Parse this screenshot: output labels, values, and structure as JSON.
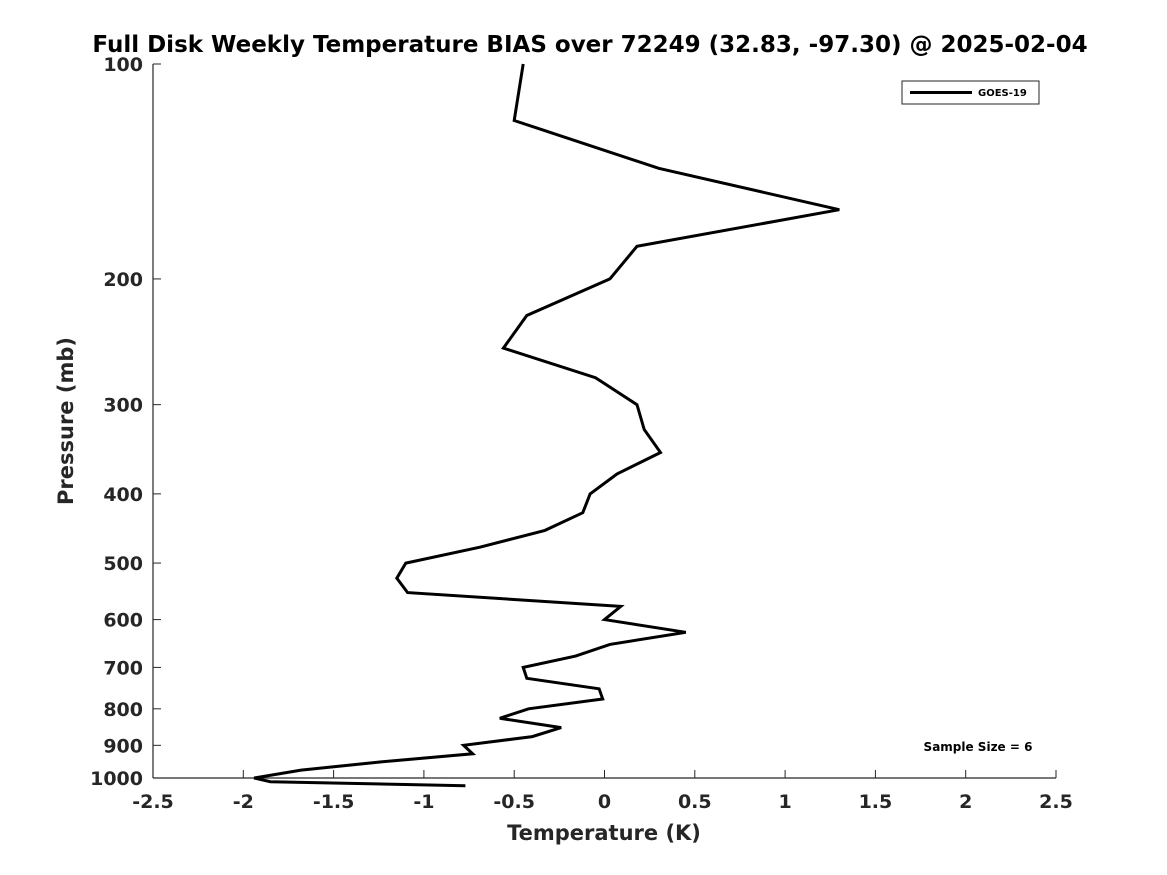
{
  "chart_data": {
    "type": "line",
    "title": "Full Disk Weekly Temperature BIAS over 72249 (32.83, -97.30) @ 2025-02-04",
    "xlabel": "Temperature (K)",
    "ylabel": "Pressure (mb)",
    "xlim": [
      -2.5,
      2.5
    ],
    "ylim": [
      100,
      1000
    ],
    "y_scale": "log",
    "y_reversed": true,
    "grid": false,
    "legend_position": "top-right",
    "x_ticks": [
      -2.5,
      -2,
      -1.5,
      -1,
      -0.5,
      0,
      0.5,
      1,
      1.5,
      2,
      2.5
    ],
    "x_tick_labels": [
      "-2.5",
      "-2",
      "-1.5",
      "-1",
      "-0.5",
      "0",
      "0.5",
      "1",
      "1.5",
      "2",
      "2.5"
    ],
    "y_ticks": [
      100,
      200,
      300,
      400,
      500,
      600,
      700,
      800,
      900,
      1000
    ],
    "y_tick_labels": [
      "100",
      "200",
      "300",
      "400",
      "500",
      "600",
      "700",
      "800",
      "900",
      "1000"
    ],
    "annotation": "Sample Size = 6",
    "series": [
      {
        "name": "GOES-19",
        "color": "#000000",
        "points": [
          {
            "x": -0.45,
            "p": 100
          },
          {
            "x": -0.5,
            "p": 120
          },
          {
            "x": 0.3,
            "p": 140
          },
          {
            "x": 1.3,
            "p": 160
          },
          {
            "x": 0.18,
            "p": 180
          },
          {
            "x": 0.03,
            "p": 200
          },
          {
            "x": -0.43,
            "p": 225
          },
          {
            "x": -0.56,
            "p": 250
          },
          {
            "x": -0.05,
            "p": 275
          },
          {
            "x": 0.18,
            "p": 300
          },
          {
            "x": 0.22,
            "p": 325
          },
          {
            "x": 0.31,
            "p": 350
          },
          {
            "x": 0.07,
            "p": 375
          },
          {
            "x": -0.08,
            "p": 400
          },
          {
            "x": -0.12,
            "p": 425
          },
          {
            "x": -0.33,
            "p": 450
          },
          {
            "x": -0.69,
            "p": 475
          },
          {
            "x": -1.1,
            "p": 500
          },
          {
            "x": -1.15,
            "p": 525
          },
          {
            "x": -1.09,
            "p": 550
          },
          {
            "x": 0.09,
            "p": 575
          },
          {
            "x": 0.0,
            "p": 600
          },
          {
            "x": 0.45,
            "p": 625
          },
          {
            "x": 0.03,
            "p": 650
          },
          {
            "x": -0.16,
            "p": 675
          },
          {
            "x": -0.45,
            "p": 700
          },
          {
            "x": -0.43,
            "p": 725
          },
          {
            "x": -0.03,
            "p": 750
          },
          {
            "x": -0.01,
            "p": 775
          },
          {
            "x": -0.42,
            "p": 800
          },
          {
            "x": -0.58,
            "p": 825
          },
          {
            "x": -0.24,
            "p": 850
          },
          {
            "x": -0.4,
            "p": 875
          },
          {
            "x": -0.78,
            "p": 900
          },
          {
            "x": -0.73,
            "p": 925
          },
          {
            "x": -1.25,
            "p": 950
          },
          {
            "x": -1.68,
            "p": 975
          },
          {
            "x": -1.94,
            "p": 1000
          },
          {
            "x": -1.85,
            "p": 1012
          },
          {
            "x": -0.77,
            "p": 1025
          }
        ]
      }
    ]
  }
}
